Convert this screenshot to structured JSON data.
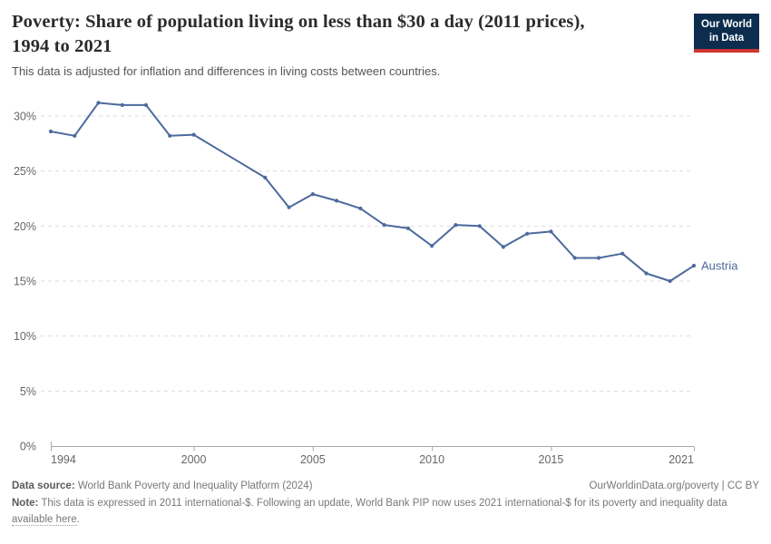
{
  "header": {
    "title": "Poverty: Share of population living on less than $30 a day (2011 prices), 1994 to 2021",
    "subtitle": "This data is adjusted for inflation and differences in living costs between countries.",
    "logo": {
      "line1": "Our World",
      "line2": "in Data"
    }
  },
  "colors": {
    "series": "#4c6a9c",
    "logo_bg": "#0c2d4d",
    "logo_accent": "#cd3731",
    "grid": "#dddddd",
    "axis": "#a8a8a8",
    "tick_label": "#666666"
  },
  "chart_data": {
    "type": "line",
    "title": "Poverty: Share of population living on less than $30 a day (2011 prices), 1994 to 2021",
    "xlabel": "",
    "ylabel": "",
    "xlim": [
      1994,
      2021
    ],
    "ylim": [
      0,
      31.5
    ],
    "x_ticks": [
      1994,
      2000,
      2005,
      2010,
      2015,
      2021
    ],
    "y_ticks": [
      0,
      5,
      10,
      15,
      20,
      25,
      30
    ],
    "y_tick_suffix": "%",
    "grid": true,
    "legend_position": "end-of-line",
    "series": [
      {
        "name": "Austria",
        "color": "#4c6a9c",
        "x": [
          1994,
          1995,
          1996,
          1997,
          1998,
          1999,
          2000,
          2003,
          2004,
          2005,
          2006,
          2007,
          2008,
          2009,
          2010,
          2011,
          2012,
          2013,
          2014,
          2015,
          2016,
          2017,
          2018,
          2019,
          2020,
          2021
        ],
        "values": [
          28.6,
          28.2,
          31.2,
          31.0,
          31.0,
          28.2,
          28.3,
          24.4,
          21.7,
          22.9,
          22.3,
          21.6,
          20.1,
          19.8,
          18.2,
          20.1,
          20.0,
          18.1,
          19.3,
          19.5,
          17.1,
          17.1,
          17.5,
          15.7,
          15.0,
          16.4
        ]
      }
    ]
  },
  "footer": {
    "datasource_label": "Data source:",
    "datasource_text": " World Bank Poverty and Inequality Platform (2024)",
    "rights": "OurWorldinData.org/poverty | CC BY",
    "note_label": "Note:",
    "note_before_link": " This data is expressed in 2011 international-$. Following an update, World Bank PIP now uses 2021 international-$ for its poverty and inequality data ",
    "note_link": "available here",
    "note_after_link": "."
  }
}
